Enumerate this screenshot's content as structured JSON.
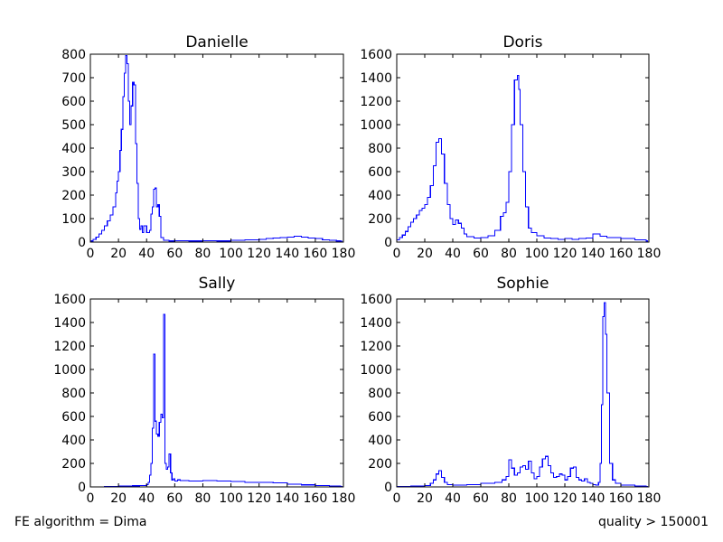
{
  "footer": {
    "left": "FE algorithm = Dima",
    "right": "quality > 150001"
  },
  "line_color": "#0000ff",
  "chart_data": [
    {
      "type": "step",
      "title": "Danielle",
      "xlim": [
        0,
        180
      ],
      "ylim": [
        0,
        800
      ],
      "xticks": [
        0,
        20,
        40,
        60,
        80,
        100,
        120,
        140,
        160,
        180
      ],
      "yticks": [
        0,
        100,
        200,
        300,
        400,
        500,
        600,
        700,
        800
      ],
      "series": [
        {
          "x": [
            0,
            2,
            4,
            6,
            8,
            10,
            12,
            14,
            16,
            18,
            19,
            20,
            21,
            22,
            23,
            24,
            25,
            26,
            27,
            28,
            29,
            30,
            31,
            32,
            33,
            34,
            35,
            36,
            37,
            38,
            40,
            42,
            43,
            44,
            45,
            46,
            47,
            48,
            49,
            50,
            52,
            56,
            60,
            70,
            80,
            90,
            100,
            110,
            120,
            125,
            130,
            135,
            140,
            145,
            150,
            155,
            160,
            165,
            170,
            175,
            178
          ],
          "y": [
            5,
            12,
            22,
            35,
            50,
            70,
            90,
            115,
            150,
            210,
            260,
            300,
            390,
            480,
            620,
            720,
            795,
            760,
            600,
            500,
            580,
            680,
            670,
            420,
            250,
            100,
            55,
            70,
            40,
            70,
            40,
            50,
            120,
            150,
            225,
            230,
            150,
            160,
            110,
            20,
            8,
            5,
            6,
            5,
            6,
            5,
            8,
            10,
            12,
            15,
            18,
            20,
            22,
            25,
            22,
            18,
            15,
            10,
            8,
            5,
            3
          ]
        }
      ]
    },
    {
      "type": "step",
      "title": "Doris",
      "xlim": [
        0,
        180
      ],
      "ylim": [
        0,
        1600
      ],
      "xticks": [
        0,
        20,
        40,
        60,
        80,
        100,
        120,
        140,
        160,
        180
      ],
      "yticks": [
        0,
        200,
        400,
        600,
        800,
        1000,
        1200,
        1400,
        1600
      ],
      "series": [
        {
          "x": [
            0,
            2,
            4,
            6,
            8,
            10,
            12,
            14,
            16,
            18,
            20,
            22,
            24,
            26,
            28,
            30,
            32,
            34,
            36,
            38,
            40,
            42,
            44,
            46,
            48,
            50,
            55,
            60,
            65,
            70,
            74,
            76,
            78,
            80,
            82,
            84,
            86,
            87,
            88,
            90,
            92,
            94,
            96,
            100,
            105,
            110,
            115,
            120,
            125,
            130,
            135,
            140,
            145,
            150,
            160,
            170,
            178
          ],
          "y": [
            20,
            40,
            60,
            90,
            130,
            170,
            200,
            230,
            270,
            290,
            320,
            380,
            480,
            650,
            850,
            880,
            750,
            500,
            320,
            200,
            150,
            190,
            160,
            120,
            70,
            45,
            35,
            40,
            55,
            100,
            220,
            250,
            340,
            600,
            1000,
            1380,
            1420,
            1300,
            1000,
            600,
            300,
            120,
            80,
            55,
            35,
            30,
            25,
            30,
            25,
            30,
            35,
            70,
            50,
            40,
            30,
            20,
            10
          ]
        }
      ]
    },
    {
      "type": "step",
      "title": "Sally",
      "xlim": [
        0,
        180
      ],
      "ylim": [
        0,
        1600
      ],
      "xticks": [
        0,
        20,
        40,
        60,
        80,
        100,
        120,
        140,
        160,
        180
      ],
      "yticks": [
        0,
        200,
        400,
        600,
        800,
        1000,
        1200,
        1400,
        1600
      ],
      "series": [
        {
          "x": [
            0,
            10,
            20,
            30,
            35,
            40,
            41,
            42,
            43,
            44,
            45,
            46,
            47,
            48,
            49,
            50,
            51,
            52,
            53,
            54,
            55,
            56,
            57,
            58,
            59,
            60,
            62,
            64,
            70,
            80,
            90,
            100,
            110,
            120,
            130,
            140,
            150,
            160,
            170,
            178
          ],
          "y": [
            0,
            5,
            8,
            10,
            12,
            20,
            40,
            100,
            200,
            500,
            1130,
            560,
            450,
            430,
            550,
            620,
            590,
            1470,
            200,
            150,
            170,
            280,
            120,
            60,
            70,
            50,
            60,
            55,
            50,
            55,
            50,
            45,
            40,
            40,
            35,
            25,
            18,
            12,
            8,
            4
          ]
        }
      ]
    },
    {
      "type": "step",
      "title": "Sophie",
      "xlim": [
        0,
        180
      ],
      "ylim": [
        0,
        1600
      ],
      "xticks": [
        0,
        20,
        40,
        60,
        80,
        100,
        120,
        140,
        160,
        180
      ],
      "yticks": [
        0,
        200,
        400,
        600,
        800,
        1000,
        1200,
        1400,
        1600
      ],
      "series": [
        {
          "x": [
            0,
            5,
            10,
            15,
            20,
            24,
            26,
            28,
            30,
            32,
            34,
            36,
            40,
            50,
            60,
            70,
            75,
            78,
            80,
            82,
            84,
            86,
            88,
            90,
            92,
            94,
            96,
            98,
            100,
            102,
            104,
            106,
            108,
            110,
            112,
            114,
            116,
            118,
            120,
            122,
            124,
            126,
            128,
            130,
            132,
            134,
            136,
            138,
            140,
            142,
            144,
            145,
            146,
            147,
            148,
            149,
            150,
            152,
            154,
            156,
            160,
            170,
            178
          ],
          "y": [
            5,
            5,
            6,
            8,
            12,
            30,
            60,
            110,
            140,
            80,
            40,
            20,
            15,
            20,
            30,
            40,
            60,
            90,
            230,
            160,
            100,
            120,
            170,
            180,
            150,
            220,
            120,
            70,
            90,
            170,
            240,
            260,
            180,
            120,
            80,
            90,
            110,
            100,
            60,
            90,
            160,
            170,
            80,
            60,
            50,
            70,
            40,
            30,
            20,
            15,
            40,
            200,
            700,
            1450,
            1570,
            1300,
            800,
            200,
            60,
            30,
            15,
            8,
            3
          ]
        }
      ]
    }
  ]
}
